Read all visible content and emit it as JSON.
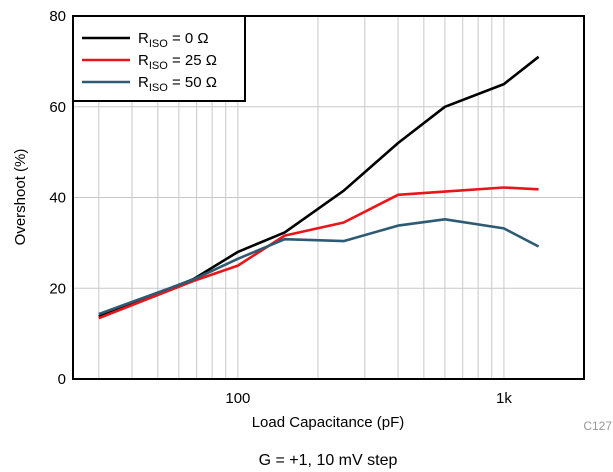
{
  "chart_data": {
    "type": "line",
    "xlabel": "Load Capacitance (pF)",
    "ylabel": "Overshoot (%)",
    "xscale": "log",
    "xlim": [
      24,
      2000
    ],
    "ylim": [
      0,
      80
    ],
    "yticks": [
      0,
      20,
      40,
      60,
      80
    ],
    "xticks": [
      {
        "value": 100,
        "label": "100"
      },
      {
        "value": 1000,
        "label": "1k"
      }
    ],
    "grid": true,
    "legend_position": "top-left",
    "series": [
      {
        "name_main": "R",
        "name_sub": "ISO",
        "name_rest": " = 0 Ω",
        "color": "#000000",
        "points": [
          [
            30,
            13.8
          ],
          [
            68,
            22
          ],
          [
            100,
            28
          ],
          [
            150,
            32.3
          ],
          [
            250,
            41.5
          ],
          [
            400,
            52
          ],
          [
            600,
            60
          ],
          [
            1000,
            65
          ],
          [
            1350,
            71
          ]
        ]
      },
      {
        "name_main": "R",
        "name_sub": "ISO",
        "name_rest": " = 25 Ω",
        "color": "#e8151b",
        "points": [
          [
            30,
            13.4
          ],
          [
            68,
            21.6
          ],
          [
            100,
            25
          ],
          [
            150,
            31.6
          ],
          [
            250,
            34.5
          ],
          [
            400,
            40.6
          ],
          [
            600,
            41.3
          ],
          [
            1000,
            42.2
          ],
          [
            1350,
            41.8
          ]
        ]
      },
      {
        "name_main": "R",
        "name_sub": "ISO",
        "name_rest": " = 50 Ω",
        "color": "#2e5b74",
        "points": [
          [
            30,
            14.3
          ],
          [
            68,
            21.9
          ],
          [
            100,
            26.5
          ],
          [
            150,
            30.8
          ],
          [
            250,
            30.4
          ],
          [
            400,
            33.8
          ],
          [
            600,
            35.2
          ],
          [
            1000,
            33.2
          ],
          [
            1350,
            29.2
          ]
        ]
      }
    ]
  },
  "figure_code": "C127",
  "caption": "G = +1, 10 mV step"
}
